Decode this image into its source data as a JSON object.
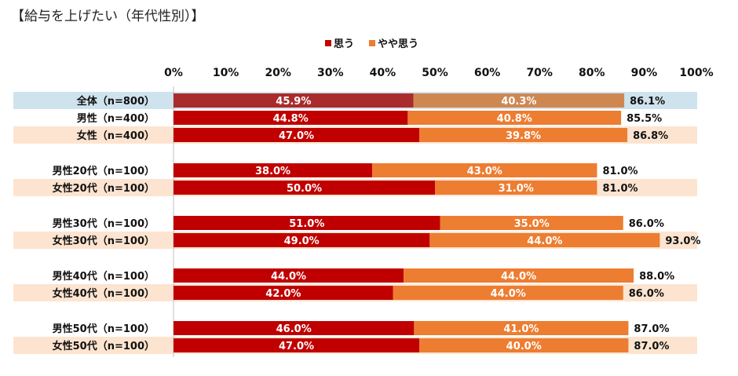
{
  "title": "【給与を上げたい（年代性別）】",
  "chart_data": {
    "type": "bar",
    "orientation": "horizontal",
    "stacked": true,
    "title": "【給与を上げたい（年代性別）】",
    "xlim": [
      0,
      100
    ],
    "x_ticks": [
      "0%",
      "10%",
      "20%",
      "30%",
      "40%",
      "50%",
      "60%",
      "70%",
      "80%",
      "90%",
      "100%"
    ],
    "legend_position": "top-center",
    "categories": [
      "全体（n=800）",
      "男性（n=400）",
      "女性（n=400）",
      "男性20代（n=100）",
      "女性20代（n=100）",
      "男性30代（n=100）",
      "女性30代（n=100）",
      "男性40代（n=100）",
      "女性40代（n=100）",
      "男性50代（n=100）",
      "女性50代（n=100）"
    ],
    "series": [
      {
        "name": "思う",
        "values": [
          45.9,
          44.8,
          47.0,
          38.0,
          50.0,
          51.0,
          49.0,
          44.0,
          42.0,
          46.0,
          47.0
        ],
        "labels": [
          "45.9%",
          "44.8%",
          "47.0%",
          "38.0%",
          "50.0%",
          "51.0%",
          "49.0%",
          "44.0%",
          "42.0%",
          "46.0%",
          "47.0%"
        ]
      },
      {
        "name": "やや思う",
        "values": [
          40.3,
          40.8,
          39.8,
          43.0,
          31.0,
          35.0,
          44.0,
          44.0,
          44.0,
          41.0,
          40.0
        ],
        "labels": [
          "40.3%",
          "40.8%",
          "39.8%",
          "43.0%",
          "31.0%",
          "35.0%",
          "44.0%",
          "44.0%",
          "44.0%",
          "41.0%",
          "40.0%"
        ]
      }
    ],
    "totals": [
      86.1,
      85.5,
      86.8,
      81.0,
      81.0,
      86.0,
      93.0,
      88.0,
      86.0,
      87.0,
      87.0
    ],
    "total_labels": [
      "86.1%",
      "85.5%",
      "86.8%",
      "81.0%",
      "81.0%",
      "86.0%",
      "93.0%",
      "88.0%",
      "86.0%",
      "87.0%",
      "87.0%"
    ],
    "row_groups": [
      0,
      0,
      0,
      1,
      1,
      2,
      2,
      3,
      3,
      4,
      4
    ],
    "row_highlight": [
      "blue",
      "none",
      "peach",
      "none",
      "peach",
      "none",
      "peach",
      "none",
      "peach",
      "none",
      "peach"
    ],
    "colors": {
      "omou": "#c00000",
      "yaya": "#ed7d31",
      "omou_total": "#a92b2b",
      "yaya_total": "#cf8752",
      "band_blue": "#cfe3ee",
      "band_peach": "#fde4d0",
      "axis": "#bfbfbf"
    }
  }
}
